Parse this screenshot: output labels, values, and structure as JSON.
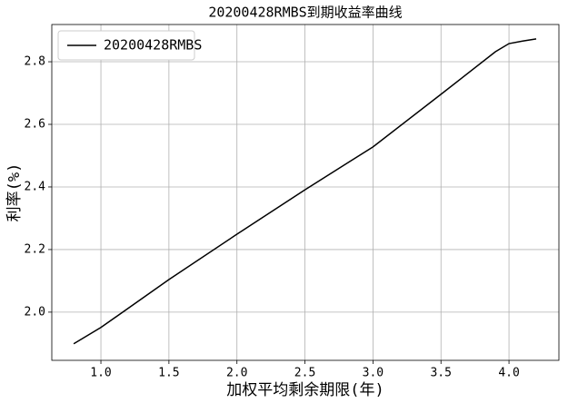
{
  "chart_data": {
    "type": "line",
    "title": "20200428RMBS到期收益率曲线",
    "x_label": "加权平均剩余期限(年)",
    "y_label": "利率(%)",
    "x": [
      0.8,
      1.0,
      1.5,
      2.0,
      2.5,
      3.0,
      3.5,
      3.9,
      4.0,
      4.1,
      4.2
    ],
    "series": [
      {
        "name": "20200428RMBS",
        "color": "#000000",
        "values": [
          1.899,
          1.951,
          2.104,
          2.249,
          2.391,
          2.528,
          2.696,
          2.832,
          2.858,
          2.866,
          2.873
        ]
      }
    ],
    "xlim": [
      0.639,
      4.367
    ],
    "ylim": [
      1.846,
      2.919
    ],
    "xticks": [
      {
        "value": 1.0,
        "label": "1.0"
      },
      1.5,
      {
        "value": 2.0,
        "label": "2.0"
      },
      2.5,
      {
        "value": 3.0,
        "label": "3.0"
      },
      3.5,
      {
        "value": 4.0,
        "label": "4.0"
      }
    ],
    "yticks": [
      {
        "value": 2.0,
        "label": "2.0"
      },
      2.2,
      2.4,
      2.6,
      2.8
    ],
    "grid": true,
    "legend": "upper-left"
  }
}
